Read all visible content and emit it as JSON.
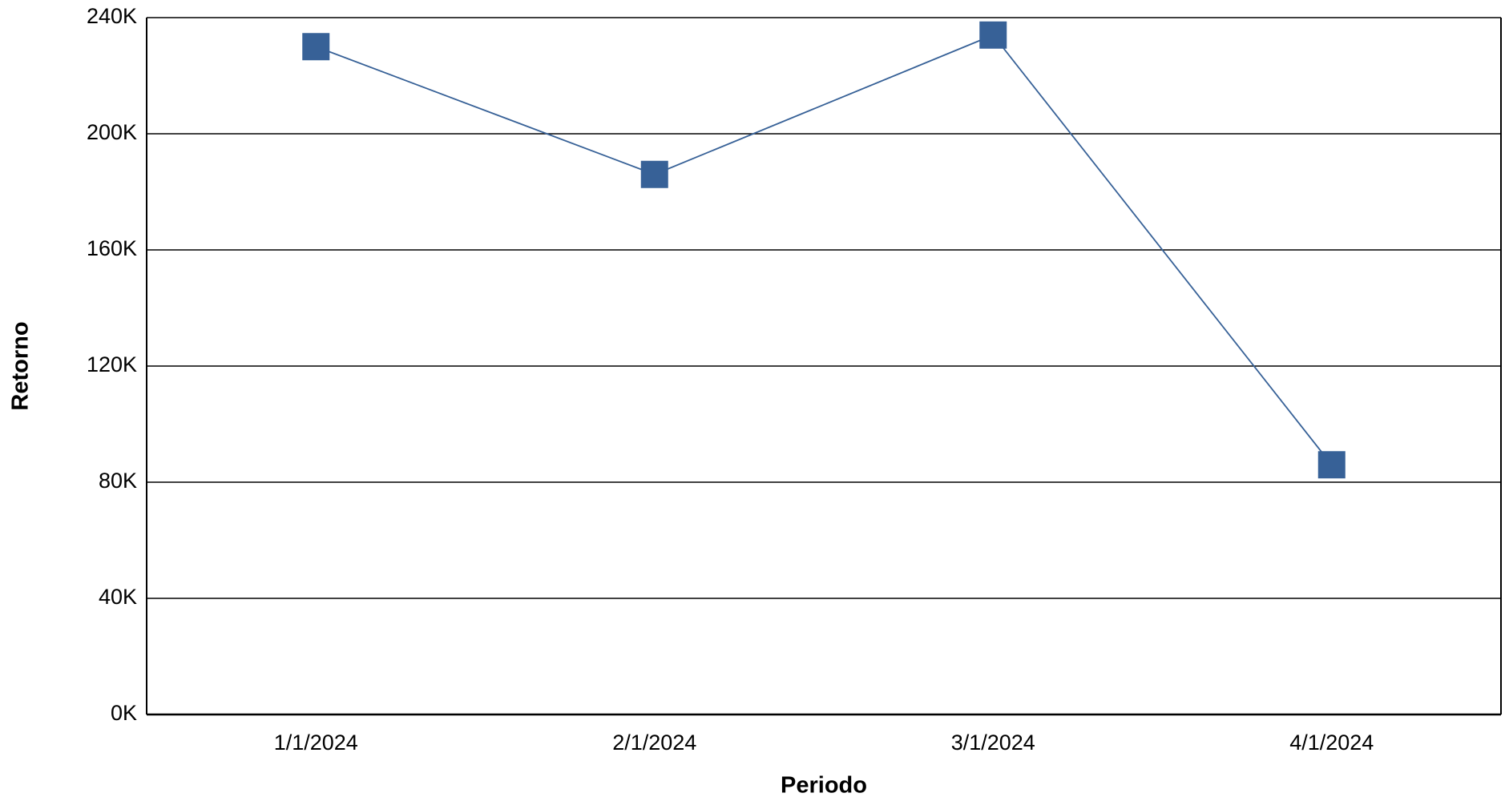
{
  "chart_data": {
    "type": "line",
    "x_label": "Periodo",
    "y_label": "Retorno",
    "categories": [
      "1/1/2024",
      "2/1/2024",
      "3/1/2024",
      "4/1/2024"
    ],
    "values": [
      230000,
      186000,
      234000,
      86000
    ],
    "color": "#376197",
    "ylim": [
      0,
      240000
    ],
    "yticks": [
      {
        "value": 0,
        "label": "0K"
      },
      {
        "value": 40000,
        "label": "40K"
      },
      {
        "value": 80000,
        "label": "80K"
      },
      {
        "value": 120000,
        "label": "120K"
      },
      {
        "value": 160000,
        "label": "160K"
      },
      {
        "value": 200000,
        "label": "200K"
      },
      {
        "value": 240000,
        "label": "240K"
      }
    ],
    "grid": true
  }
}
